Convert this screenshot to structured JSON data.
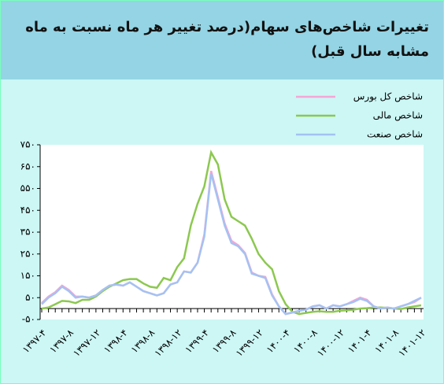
{
  "chart_data": {
    "type": "line",
    "title": "تغییرات شاخص‌های سهام(درصد تغییر هر ماه نسبت به ماه مشابه سال قبل)",
    "categories": [
      "۱۳۹۷-۴",
      null,
      null,
      null,
      "۱۳۹۷-۸",
      null,
      null,
      null,
      "۱۳۹۷-۱۲",
      null,
      null,
      null,
      "۱۳۹۸-۴",
      null,
      null,
      null,
      "۱۳۹۸-۸",
      null,
      null,
      null,
      "۱۳۹۸-۱۲",
      null,
      null,
      null,
      "۱۳۹۹-۴",
      null,
      null,
      null,
      "۱۳۹۹-۸",
      null,
      null,
      null,
      "۱۳۹۹-۱۲",
      null,
      null,
      null,
      "۱۴۰۰-۴",
      null,
      null,
      null,
      "۱۴۰۰-۸",
      null,
      null,
      null,
      "۱۴۰۰-۱۲",
      null,
      null,
      null,
      "۱۴۰۱-۴",
      null,
      null,
      null,
      "۱۴۰۱-۸",
      null,
      null,
      null,
      "۱۴۰۱-۱۲"
    ],
    "series": [
      {
        "name": "شاخص کل بورس",
        "color": "#f4a6d6",
        "values": [
          25,
          55,
          75,
          105,
          85,
          55,
          55,
          50,
          60,
          85,
          105,
          110,
          105,
          120,
          100,
          80,
          70,
          60,
          70,
          110,
          120,
          170,
          165,
          210,
          340,
          630,
          510,
          390,
          310,
          290,
          255,
          165,
          150,
          145,
          65,
          10,
          -25,
          -18,
          -10,
          -5,
          10,
          15,
          0,
          15,
          10,
          20,
          35,
          50,
          40,
          10,
          0,
          5,
          0,
          10,
          20,
          30,
          50
        ]
      },
      {
        "name": "شاخص مالی",
        "color": "#8cc850",
        "values": [
          0,
          5,
          20,
          35,
          33,
          25,
          40,
          40,
          55,
          80,
          100,
          115,
          130,
          135,
          135,
          115,
          100,
          95,
          140,
          130,
          190,
          230,
          380,
          480,
          560,
          715,
          660,
          500,
          420,
          400,
          380,
          320,
          250,
          210,
          180,
          80,
          20,
          -15,
          -25,
          -20,
          -15,
          -12,
          -15,
          -15,
          -10,
          -8,
          -5,
          0,
          2,
          5,
          5,
          3,
          0,
          -2,
          5,
          10,
          15
        ]
      },
      {
        "name": "شاخص صنعت",
        "color": "#a4c2f2",
        "values": [
          20,
          50,
          70,
          100,
          80,
          50,
          55,
          50,
          60,
          85,
          105,
          110,
          105,
          120,
          100,
          80,
          70,
          60,
          70,
          110,
          120,
          170,
          165,
          210,
          330,
          620,
          500,
          380,
          300,
          285,
          250,
          160,
          150,
          140,
          60,
          10,
          -25,
          -18,
          -10,
          -5,
          10,
          15,
          0,
          15,
          10,
          20,
          30,
          45,
          35,
          10,
          0,
          5,
          0,
          10,
          20,
          35,
          50
        ]
      }
    ],
    "ylim": [
      -50,
      750
    ],
    "yticks": [
      {
        "value": -50,
        "label": "-۵۰"
      },
      {
        "value": 50,
        "label": "۵۰"
      },
      {
        "value": 150,
        "label": "۱۵۰"
      },
      {
        "value": 250,
        "label": "۲۵۰"
      },
      {
        "value": 350,
        "label": "۳۵۰"
      },
      {
        "value": 450,
        "label": "۴۵۰"
      },
      {
        "value": 550,
        "label": "۵۵۰"
      },
      {
        "value": 650,
        "label": "۶۵۰"
      },
      {
        "value": 750,
        "label": "۷۵۰"
      }
    ],
    "grid": false
  }
}
